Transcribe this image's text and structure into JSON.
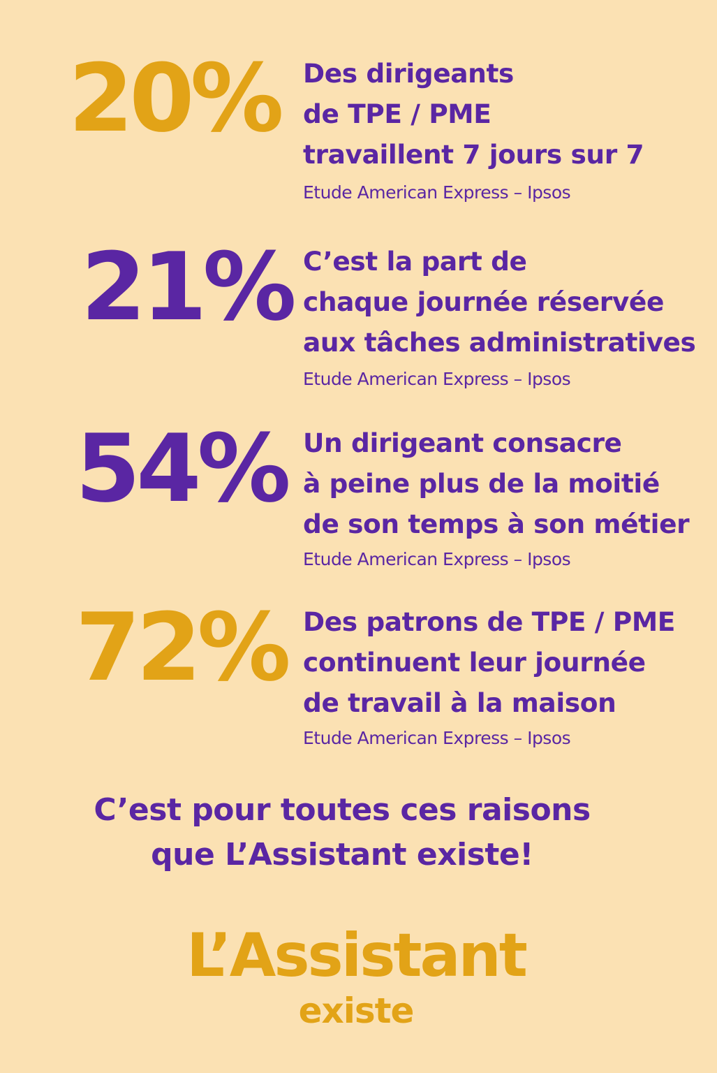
{
  "colors": {
    "background": "#fbe1b3",
    "purple": "#5a26a3",
    "gold": "#e2a317"
  },
  "stats": [
    {
      "value": "20%",
      "accent": "gold",
      "lines": [
        "Des dirigeants",
        "de TPE / PME",
        "travaillent 7 jours sur 7"
      ],
      "source": "Etude American Express – Ipsos"
    },
    {
      "value": "21%",
      "accent": "purple",
      "lines": [
        "C’est la part de",
        "chaque journée réservée",
        "aux tâches administratives"
      ],
      "source": "Etude American Express – Ipsos"
    },
    {
      "value": "54%",
      "accent": "purple",
      "lines": [
        "Un dirigeant consacre",
        "à peine plus de la moitié",
        "de son temps à son métier"
      ],
      "source": "Etude American Express – Ipsos"
    },
    {
      "value": "72%",
      "accent": "gold",
      "lines": [
        "Des patrons de TPE / PME",
        "continuent leur journée",
        "de travail à la maison"
      ],
      "source": "Etude American Express – Ipsos"
    }
  ],
  "closing": {
    "lines": [
      "C’est pour toutes ces raisons",
      "que L’Assistant existe!"
    ]
  },
  "logo": {
    "name": "L’Assistant",
    "tagline": "existe"
  }
}
